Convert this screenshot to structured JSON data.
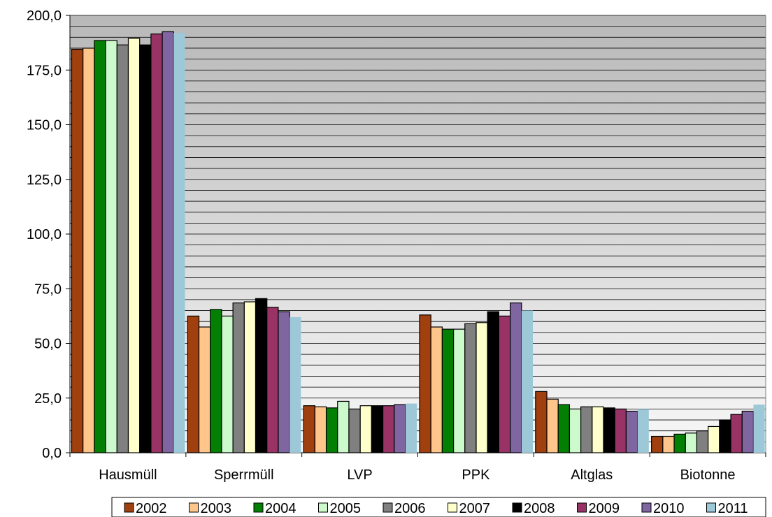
{
  "chart_data": {
    "type": "bar",
    "title": "",
    "xlabel": "",
    "ylabel": "",
    "ylim": [
      0,
      200
    ],
    "yticks": [
      "0,0",
      "25,0",
      "50,0",
      "75,0",
      "100,0",
      "125,0",
      "150,0",
      "175,0",
      "200,0"
    ],
    "categories": [
      "Hausmüll",
      "Sperrmüll",
      "LVP",
      "PPK",
      "Altglas",
      "Biotonne"
    ],
    "series": [
      {
        "name": "2002",
        "color": "#a0400e",
        "values": [
          184.5,
          62.5,
          21.5,
          63.0,
          28.0,
          7.5
        ]
      },
      {
        "name": "2003",
        "color": "#ffc68c",
        "values": [
          185.0,
          57.5,
          21.0,
          57.5,
          24.5,
          7.5
        ]
      },
      {
        "name": "2004",
        "color": "#038003",
        "values": [
          188.5,
          65.5,
          20.5,
          56.5,
          22.0,
          8.5
        ]
      },
      {
        "name": "2005",
        "color": "#cdfacd",
        "values": [
          188.5,
          62.5,
          23.5,
          56.5,
          20.0,
          9.0
        ]
      },
      {
        "name": "2006",
        "color": "#808080",
        "values": [
          186.5,
          68.5,
          20.0,
          59.0,
          21.0,
          10.0
        ]
      },
      {
        "name": "2007",
        "color": "#ffffcc",
        "values": [
          189.5,
          69.0,
          21.5,
          59.5,
          21.0,
          12.0
        ]
      },
      {
        "name": "2008",
        "color": "#000000",
        "values": [
          186.5,
          70.5,
          21.5,
          64.5,
          20.5,
          15.0
        ]
      },
      {
        "name": "2009",
        "color": "#993366",
        "values": [
          191.5,
          66.5,
          21.5,
          62.5,
          20.0,
          17.5
        ]
      },
      {
        "name": "2010",
        "color": "#8066a0",
        "values": [
          192.5,
          64.5,
          22.0,
          68.5,
          19.0,
          19.0
        ]
      },
      {
        "name": "2011",
        "color": "#9dc8d8",
        "values": [
          192.0,
          62.0,
          22.5,
          65.0,
          20.0,
          22.0
        ]
      }
    ],
    "grid": true,
    "legend": "bottom"
  }
}
